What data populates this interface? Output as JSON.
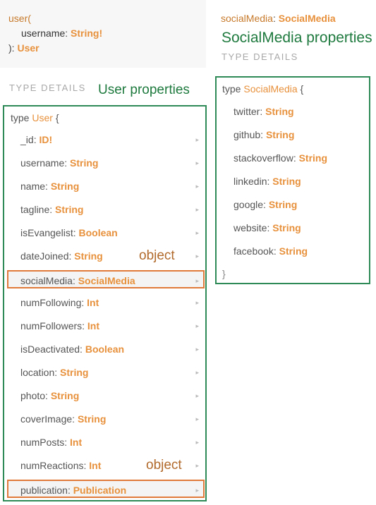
{
  "signature": {
    "fn_name": "user(",
    "arg_name": "username",
    "arg_sep": ": ",
    "arg_type": "String!",
    "close": "): ",
    "return_type": "User"
  },
  "left": {
    "type_details_label": "TYPE DETAILS",
    "annotation_title": "User properties",
    "type_keyword": "type",
    "type_name": "User",
    "open_brace": "{",
    "object_annotation": "object",
    "fields": [
      {
        "name": "_id",
        "type": "ID!"
      },
      {
        "name": "username",
        "type": "String"
      },
      {
        "name": "name",
        "type": "String"
      },
      {
        "name": "tagline",
        "type": "String"
      },
      {
        "name": "isEvangelist",
        "type": "Boolean"
      },
      {
        "name": "dateJoined",
        "type": "String"
      },
      {
        "name": "socialMedia",
        "type": "SocialMedia"
      },
      {
        "name": "numFollowing",
        "type": "Int"
      },
      {
        "name": "numFollowers",
        "type": "Int"
      },
      {
        "name": "isDeactivated",
        "type": "Boolean"
      },
      {
        "name": "location",
        "type": "String"
      },
      {
        "name": "photo",
        "type": "String"
      },
      {
        "name": "coverImage",
        "type": "String"
      },
      {
        "name": "numPosts",
        "type": "Int"
      },
      {
        "name": "numReactions",
        "type": "Int"
      },
      {
        "name": "publication",
        "type": "Publication"
      }
    ],
    "arrow_glyph": "▸"
  },
  "right": {
    "field_name": "socialMedia",
    "field_sep": ": ",
    "field_type": "SocialMedia",
    "annotation_title": "SocialMedia properties",
    "type_details_label": "TYPE DETAILS",
    "type_keyword": "type",
    "type_name": "SocialMedia",
    "open_brace": "{",
    "close_brace": "}",
    "fields": [
      {
        "name": "twitter",
        "type": "String"
      },
      {
        "name": "github",
        "type": "String"
      },
      {
        "name": "stackoverflow",
        "type": "String"
      },
      {
        "name": "linkedin",
        "type": "String"
      },
      {
        "name": "google",
        "type": "String"
      },
      {
        "name": "website",
        "type": "String"
      },
      {
        "name": "facebook",
        "type": "String"
      }
    ]
  },
  "colors": {
    "annotation_green": "#1e7a3e",
    "annotation_orange": "#b16a2b",
    "type_orange": "#e8913c",
    "box_green": "#2e8b57",
    "highlight_border": "#e07a3a"
  }
}
